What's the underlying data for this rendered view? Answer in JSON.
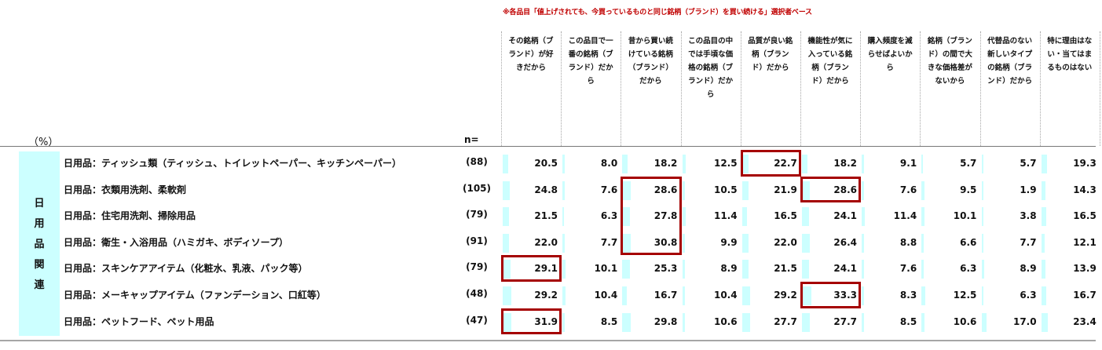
{
  "note": "※各品目「値上げされても、今買っているものと同じ銘柄（ブランド）を買い続ける」選択者ベース",
  "unit_label": "（%）",
  "n_label": "n=",
  "columns": [
    "その銘柄（ブランド）が好きだから",
    "この品目で一番の銘柄（ブランド）だから",
    "昔から買い続けている銘柄（ブランド）だから",
    "この品目の中では手頃な価格の銘柄（ブランド）だから",
    "品質が良い銘柄（ブランド）だから",
    "機能性が気に入っている銘柄（ブランド）だから",
    "購入頻度を減らせばよいから",
    "銘柄（ブランド）の間で大きな価格差がないから",
    "代替品のない新しいタイプの銘柄（ブランド）だから",
    "特に理由はない・当てはまるものはない"
  ],
  "header_lines": [
    [
      "その銘柄（ブ",
      "ランド）が好",
      "きだから"
    ],
    [
      "この品目で一",
      "番の銘柄（ブ",
      "ランド）だか",
      "ら"
    ],
    [
      "昔から買い続",
      "けている銘柄",
      "（ブランド）",
      "だから"
    ],
    [
      "この品目の中",
      "では手頃な価",
      "格の銘柄（ブ",
      "ランド）だか",
      "ら"
    ],
    [
      "品質が良い銘",
      "柄（ブラン",
      "ド）だから"
    ],
    [
      "機能性が気に",
      "入っている銘",
      "柄（ブラン",
      "ド）だから"
    ],
    [
      "購入頻度を減",
      "らせばよいか",
      "ら"
    ],
    [
      "銘柄（ブラン",
      "ド）の間で大",
      "きな価格差が",
      "ないから"
    ],
    [
      "代替品のない",
      "新しいタイプ",
      "の銘柄（ブラ",
      "ンド）だから"
    ],
    [
      "特に理由はな",
      "い・当てはま",
      "るものはない"
    ]
  ],
  "category_chars": [
    "日",
    "用",
    "品",
    "関",
    "連"
  ],
  "rows": [
    {
      "label": "日用品：ティッシュ類（ティッシュ、トイレットペーパー、キッチンペーパー）",
      "n": "(88)",
      "values": [
        "20.5",
        "8.0",
        "18.2",
        "12.5",
        "22.7",
        "18.2",
        "9.1",
        "5.7",
        "5.7",
        "19.3"
      ]
    },
    {
      "label": "日用品：衣類用洗剤、柔軟剤",
      "n": "(105)",
      "values": [
        "24.8",
        "7.6",
        "28.6",
        "10.5",
        "21.9",
        "28.6",
        "7.6",
        "9.5",
        "1.9",
        "14.3"
      ]
    },
    {
      "label": "日用品：住宅用洗剤、掃除用品",
      "n": "(79)",
      "values": [
        "21.5",
        "6.3",
        "27.8",
        "11.4",
        "16.5",
        "24.1",
        "11.4",
        "10.1",
        "3.8",
        "16.5"
      ]
    },
    {
      "label": "日用品：衛生・入浴用品（ハミガキ、ボディソープ）",
      "n": "(91)",
      "values": [
        "22.0",
        "7.7",
        "30.8",
        "9.9",
        "22.0",
        "26.4",
        "8.8",
        "6.6",
        "7.7",
        "12.1"
      ]
    },
    {
      "label": "日用品：スキンケアアイテム（化粧水、乳液、パック等）",
      "n": "(79)",
      "values": [
        "29.1",
        "10.1",
        "25.3",
        "8.9",
        "21.5",
        "24.1",
        "7.6",
        "6.3",
        "8.9",
        "13.9"
      ]
    },
    {
      "label": "日用品：メーキャップアイテム（ファンデーション、口紅等）",
      "n": "(48)",
      "values": [
        "29.2",
        "10.4",
        "16.7",
        "10.4",
        "29.2",
        "33.3",
        "8.3",
        "12.5",
        "6.3",
        "16.7"
      ]
    },
    {
      "label": "日用品：ペットフード、ペット用品",
      "n": "(47)",
      "values": [
        "31.9",
        "8.5",
        "29.8",
        "10.6",
        "27.7",
        "27.7",
        "8.5",
        "10.6",
        "17.0",
        "23.4"
      ]
    }
  ],
  "chart_data": {
    "type": "table",
    "unit": "%",
    "category": "日用品関連",
    "columns": [
      "その銘柄（ブランド）が好きだから",
      "この品目で一番の銘柄（ブランド）だから",
      "昔から買い続けている銘柄（ブランド）だから",
      "この品目の中では手頃な価格の銘柄（ブランド）だから",
      "品質が良い銘柄（ブランド）だから",
      "機能性が気に入っている銘柄（ブランド）だから",
      "購入頻度を減らせばよいから",
      "銘柄（ブランド）の間で大きな価格差がないから",
      "代替品のない新しいタイプの銘柄（ブランド）だから",
      "特に理由はない・当てはまるものはない"
    ],
    "rows": [
      {
        "label": "日用品：ティッシュ類（ティッシュ、トイレットペーパー、キッチンペーパー）",
        "n": 88,
        "values": [
          20.5,
          8.0,
          18.2,
          12.5,
          22.7,
          18.2,
          9.1,
          5.7,
          5.7,
          19.3
        ]
      },
      {
        "label": "日用品：衣類用洗剤、柔軟剤",
        "n": 105,
        "values": [
          24.8,
          7.6,
          28.6,
          10.5,
          21.9,
          28.6,
          7.6,
          9.5,
          1.9,
          14.3
        ]
      },
      {
        "label": "日用品：住宅用洗剤、掃除用品",
        "n": 79,
        "values": [
          21.5,
          6.3,
          27.8,
          11.4,
          16.5,
          24.1,
          11.4,
          10.1,
          3.8,
          16.5
        ]
      },
      {
        "label": "日用品：衛生・入浴用品（ハミガキ、ボディソープ）",
        "n": 91,
        "values": [
          22.0,
          7.7,
          30.8,
          9.9,
          22.0,
          26.4,
          8.8,
          6.6,
          7.7,
          12.1
        ]
      },
      {
        "label": "日用品：スキンケアアイテム（化粧水、乳液、パック等）",
        "n": 79,
        "values": [
          29.1,
          10.1,
          25.3,
          8.9,
          21.5,
          24.1,
          7.6,
          6.3,
          8.9,
          13.9
        ]
      },
      {
        "label": "日用品：メーキャップアイテム（ファンデーション、口紅等）",
        "n": 48,
        "values": [
          29.2,
          10.4,
          16.7,
          10.4,
          29.2,
          33.3,
          8.3,
          12.5,
          6.3,
          16.7
        ]
      },
      {
        "label": "日用品：ペットフード、ペット用品",
        "n": 47,
        "values": [
          31.9,
          8.5,
          29.8,
          10.6,
          27.7,
          27.7,
          8.5,
          10.6,
          17.0,
          23.4
        ]
      }
    ],
    "bar_color": "#ccffff",
    "highlight_color": "#a50000",
    "highlighted_cells": [
      {
        "row": 0,
        "col": 4
      },
      {
        "row": 1,
        "col": 2
      },
      {
        "row": 2,
        "col": 2
      },
      {
        "row": 3,
        "col": 2
      },
      {
        "row": 1,
        "col": 5
      },
      {
        "row": 4,
        "col": 0
      },
      {
        "row": 5,
        "col": 5
      },
      {
        "row": 6,
        "col": 0
      }
    ]
  }
}
